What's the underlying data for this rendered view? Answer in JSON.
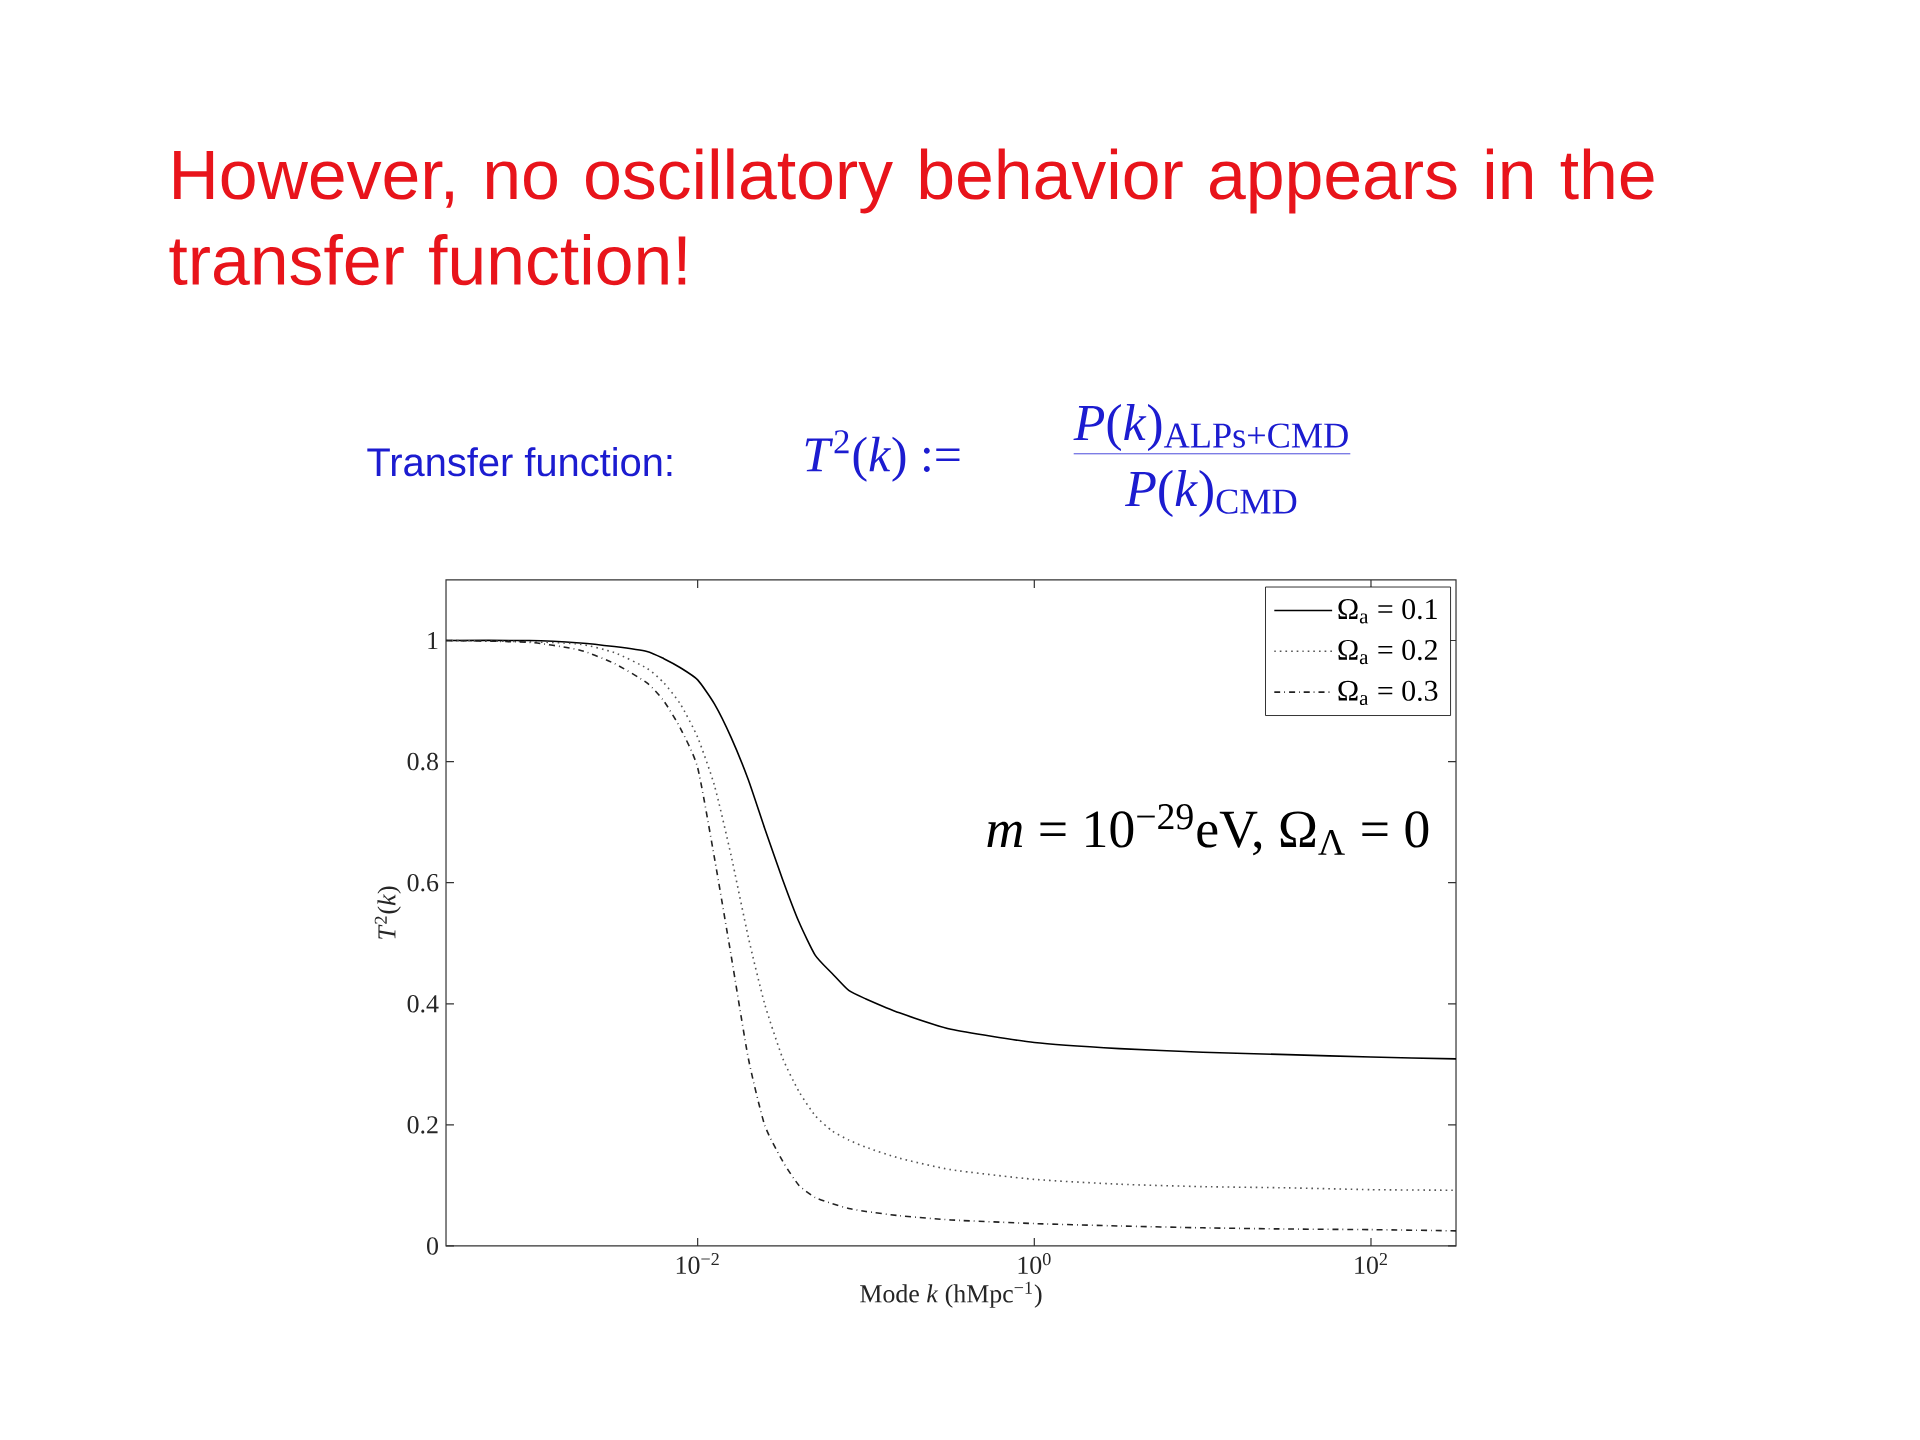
{
  "chart_data": {
    "type": "line",
    "title": "However, no oscillatory behavior  appears in the transfer function!",
    "subtitle": "Transfer function:",
    "annotations": [
      "*T*$^{2}$(*k*) :=",
      "*P*(*k*)$_{ALPs+CMD}$",
      "*P*(*k*)$_{CMD}$",
      "*m* = 10$^{−29}$eV,    Ω$_{Λ}$ = 0"
    ],
    "xlabel": "Mode *k* (hMpc$^{−1}$)",
    "ylabel": "*T*$^{2}$(*k*)",
    "log": "x",
    "xlim": [
      0.00032,
      320
    ],
    "ylim": [
      0,
      1.1
    ],
    "xticks": [
      {
        "value": 0.01,
        "label": "10$^{−2}$"
      },
      {
        "value": 1,
        "label": "10$^{0}$"
      },
      {
        "value": 100,
        "label": "10$^{2}$"
      }
    ],
    "yticks": [
      0,
      0.2,
      0.4,
      0.6,
      0.8,
      1
    ],
    "legend": "top right",
    "x": [
      0.00032,
      0.001,
      0.002,
      0.0032,
      0.005,
      0.0063,
      0.0079,
      0.01,
      0.0126,
      0.0158,
      0.02,
      0.025,
      0.032,
      0.04,
      0.05,
      0.063,
      0.079,
      0.1,
      0.158,
      0.32,
      1,
      3.2,
      10,
      32,
      100,
      320
    ],
    "series": [
      {
        "name": "Ω$_{a}$ = 0.1",
        "color": "#000000",
        "line_style": "solid",
        "values": [
          1.0,
          1.0,
          0.996,
          0.99,
          0.982,
          0.97,
          0.955,
          0.935,
          0.895,
          0.84,
          0.77,
          0.69,
          0.605,
          0.535,
          0.48,
          0.45,
          0.422,
          0.408,
          0.385,
          0.358,
          0.336,
          0.326,
          0.32,
          0.316,
          0.312,
          0.309
        ]
      },
      {
        "name": "Ω$_{a}$ = 0.2",
        "color": "#555555",
        "line_style": "dotted",
        "values": [
          1.0,
          0.998,
          0.994,
          0.98,
          0.954,
          0.93,
          0.895,
          0.84,
          0.76,
          0.645,
          0.51,
          0.4,
          0.31,
          0.255,
          0.215,
          0.19,
          0.175,
          0.163,
          0.145,
          0.126,
          0.11,
          0.102,
          0.098,
          0.096,
          0.093,
          0.092
        ]
      },
      {
        "name": "Ω$_{a}$ = 0.3",
        "color": "#222222",
        "line_style": "dashdot",
        "values": [
          1.0,
          0.997,
          0.984,
          0.962,
          0.93,
          0.9,
          0.855,
          0.79,
          0.64,
          0.48,
          0.31,
          0.2,
          0.14,
          0.1,
          0.08,
          0.07,
          0.062,
          0.057,
          0.05,
          0.043,
          0.037,
          0.033,
          0.03,
          0.028,
          0.027,
          0.025
        ]
      }
    ]
  }
}
